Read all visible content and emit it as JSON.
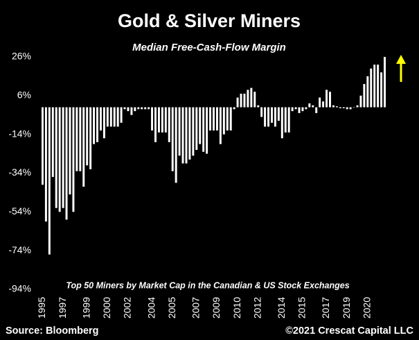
{
  "chart_data": {
    "type": "bar",
    "title": "Gold & Silver Miners",
    "subtitle": "Median Free-Cash-Flow Margin",
    "annotation": "Top 50 Miners by Market Cap in the Canadian & US Stock Exchanges",
    "source": "Source: Bloomberg",
    "copyright": "©2021 Crescat Capital LLC",
    "color": "#ffffff",
    "ylim": [
      -94,
      28
    ],
    "yticks": [
      {
        "value": -94,
        "label": "-94%"
      },
      {
        "value": -74,
        "label": "-74%"
      },
      {
        "value": -54,
        "label": "-54%"
      },
      {
        "value": -34,
        "label": "-34%"
      },
      {
        "value": -14,
        "label": "-14%"
      },
      {
        "value": 6,
        "label": "6%"
      },
      {
        "value": 26,
        "label": "26%"
      }
    ],
    "categories": [
      "1995",
      null,
      null,
      null,
      null,
      null,
      "1997",
      null,
      null,
      null,
      null,
      null,
      null,
      "1999",
      null,
      null,
      null,
      null,
      null,
      "2000",
      null,
      null,
      null,
      null,
      null,
      "2002",
      null,
      null,
      null,
      null,
      null,
      null,
      "2004",
      null,
      null,
      null,
      null,
      null,
      "2005",
      null,
      null,
      null,
      null,
      null,
      null,
      "2007",
      null,
      null,
      null,
      null,
      null,
      "2009",
      null,
      null,
      null,
      null,
      null,
      "2010",
      null,
      null,
      null,
      null,
      null,
      "2012",
      null,
      null,
      null,
      null,
      null,
      null,
      "2014",
      null,
      null,
      null,
      null,
      null,
      "2015",
      null,
      null,
      null,
      null,
      null,
      null,
      "2017",
      null,
      null,
      null,
      null,
      null,
      "2019",
      null,
      null,
      null,
      null,
      null,
      "2020",
      null,
      null,
      null,
      null,
      null
    ],
    "values": [
      -40,
      -59,
      -76,
      -36,
      -52,
      -54,
      -52,
      -58,
      -45,
      -54,
      -33,
      -33,
      -41,
      -30,
      -32,
      -19,
      -18,
      -12,
      -16,
      -10,
      -10,
      -10,
      -10,
      -8,
      -1,
      -2,
      -4,
      -2,
      -1,
      -1,
      -1,
      -1,
      -12,
      -18,
      -13,
      -13,
      -13,
      -18,
      -33,
      -39,
      -25,
      -29,
      -29,
      -27,
      -25,
      -22,
      -19,
      -23,
      -24,
      -12,
      -12,
      -12,
      -19,
      -14,
      -12,
      -12,
      -1,
      5,
      7,
      7,
      9,
      10,
      8,
      1,
      -5,
      -10,
      -10,
      -8,
      -10,
      -7,
      -16,
      -13,
      -13,
      -2,
      -1,
      -3,
      -2,
      -1,
      2,
      1,
      -3,
      5,
      3,
      9,
      8,
      1,
      0.5,
      -0.5,
      -0.5,
      -1,
      -1,
      0,
      1,
      6,
      12,
      16,
      20,
      22,
      22,
      18,
      26
    ]
  }
}
